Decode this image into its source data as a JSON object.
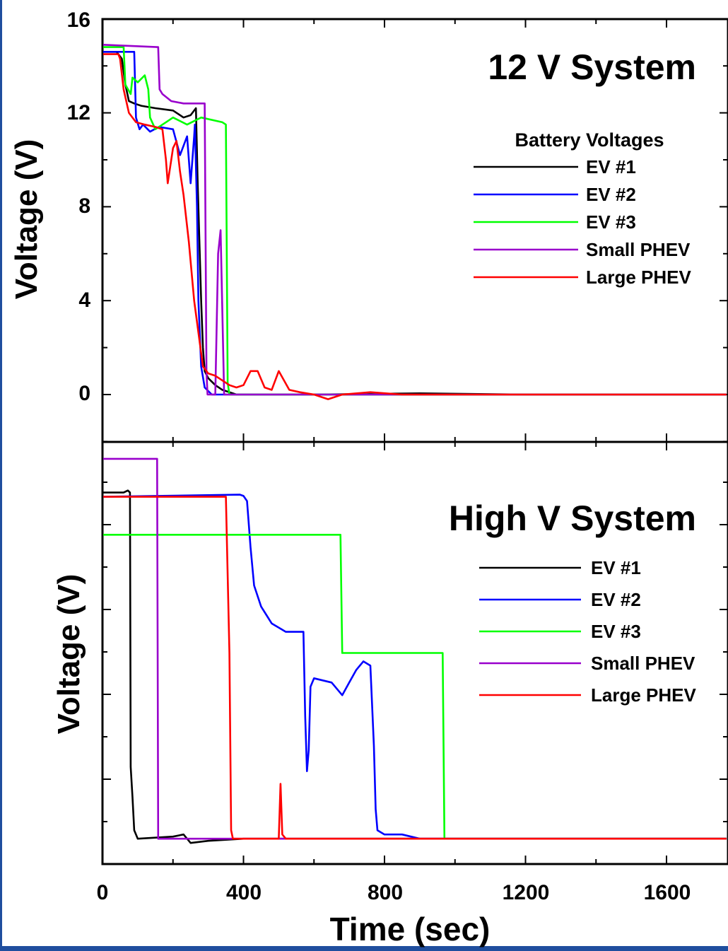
{
  "chart_data": [
    {
      "type": "line",
      "panel": "top",
      "title": "12 V System",
      "ylabel": "Voltage (V)",
      "xlim": [
        0,
        1770
      ],
      "ylim": [
        -2,
        16
      ],
      "yticks": [
        "0",
        "4",
        "8",
        "12",
        "16"
      ],
      "grid": false,
      "legend_title": "Battery Voltages",
      "legend_position": "right",
      "series": [
        {
          "name": "EV #1",
          "color": "#000000",
          "x": [
            0,
            40,
            55,
            65,
            75,
            90,
            110,
            150,
            200,
            230,
            250,
            265,
            270,
            280,
            285,
            290,
            300,
            320,
            340,
            360,
            380,
            400,
            600,
            900,
            1200,
            1500,
            1770
          ],
          "y": [
            14.6,
            14.6,
            14.3,
            13.2,
            12.5,
            12.4,
            12.3,
            12.2,
            12.1,
            11.8,
            11.9,
            12.2,
            9.0,
            4.0,
            2.0,
            1.0,
            0.7,
            0.4,
            0.2,
            0.1,
            0.0,
            0.0,
            0.0,
            0.05,
            0.0,
            0.0,
            0.0
          ]
        },
        {
          "name": "EV #2",
          "color": "#0000ff",
          "x": [
            0,
            90,
            95,
            105,
            115,
            135,
            160,
            200,
            220,
            240,
            250,
            260,
            262,
            268,
            272,
            280,
            290,
            310,
            330,
            360,
            1770
          ],
          "y": [
            14.6,
            14.6,
            11.8,
            11.3,
            11.5,
            11.2,
            11.4,
            11.3,
            10.2,
            11.0,
            9.0,
            11.0,
            11.5,
            8.0,
            4.0,
            1.2,
            0.3,
            0.0,
            0.0,
            0.0,
            0.0
          ]
        },
        {
          "name": "EV #3",
          "color": "#00ff00",
          "x": [
            0,
            60,
            65,
            80,
            85,
            100,
            120,
            130,
            135,
            150,
            180,
            200,
            240,
            280,
            340,
            350,
            355,
            360,
            380,
            1770
          ],
          "y": [
            14.8,
            14.8,
            13.2,
            12.8,
            13.5,
            13.3,
            13.6,
            13.0,
            11.8,
            11.3,
            11.6,
            11.8,
            11.5,
            11.8,
            11.6,
            11.5,
            0.5,
            0.0,
            0.0,
            0.0
          ]
        },
        {
          "name": "Small PHEV",
          "color": "#9900cc",
          "x": [
            0,
            155,
            158,
            162,
            170,
            195,
            230,
            265,
            290,
            295,
            298,
            300,
            305,
            310,
            320,
            328,
            335,
            345,
            400,
            1770
          ],
          "y": [
            14.9,
            14.8,
            14.8,
            13.0,
            12.8,
            12.5,
            12.4,
            12.4,
            12.4,
            1.0,
            0.0,
            0.0,
            0.0,
            0.0,
            0.0,
            6.0,
            7.0,
            0.0,
            0.0,
            0.0
          ]
        },
        {
          "name": "Large PHEV",
          "color": "#ff0000",
          "x": [
            0,
            30,
            45,
            50,
            60,
            75,
            95,
            120,
            150,
            170,
            180,
            185,
            200,
            210,
            220,
            230,
            245,
            260,
            285,
            300,
            320,
            340,
            360,
            380,
            400,
            420,
            440,
            460,
            480,
            500,
            530,
            560,
            600,
            640,
            680,
            760,
            850,
            1000,
            1400,
            1770
          ],
          "y": [
            14.5,
            14.5,
            14.5,
            14.3,
            13.0,
            12.0,
            11.6,
            11.5,
            11.4,
            11.3,
            10.0,
            9.0,
            10.5,
            10.8,
            9.5,
            8.5,
            6.5,
            4.0,
            1.2,
            0.9,
            0.8,
            0.6,
            0.4,
            0.3,
            0.4,
            1.0,
            1.0,
            0.3,
            0.2,
            1.0,
            0.2,
            0.1,
            0.0,
            -0.2,
            0.0,
            0.1,
            0.0,
            0.0,
            0.0,
            0.0
          ]
        }
      ]
    },
    {
      "type": "line",
      "panel": "bottom",
      "title": "High V System",
      "xlabel": "Time (sec)",
      "ylabel": "Voltage (V)",
      "xlim": [
        0,
        1770
      ],
      "ylim": [
        0,
        1
      ],
      "xticks": [
        "0",
        "400",
        "800",
        "1200",
        "1600"
      ],
      "yticks": [],
      "grid": false,
      "legend_position": "right",
      "note": "High-voltage y values are relative (axis has no printed values)",
      "series": [
        {
          "name": "EV #1",
          "color": "#000000",
          "x": [
            0,
            60,
            72,
            78,
            80,
            85,
            90,
            100,
            200,
            230,
            250,
            300,
            400,
            600,
            1000,
            1770
          ],
          "y": [
            0.88,
            0.88,
            0.885,
            0.88,
            0.23,
            0.16,
            0.08,
            0.06,
            0.065,
            0.07,
            0.05,
            0.055,
            0.06,
            0.06,
            0.06,
            0.06
          ]
        },
        {
          "name": "EV #2",
          "color": "#0000ff",
          "x": [
            0,
            390,
            400,
            410,
            420,
            430,
            450,
            480,
            520,
            570,
            575,
            580,
            585,
            590,
            600,
            650,
            680,
            700,
            720,
            740,
            760,
            770,
            775,
            780,
            800,
            850,
            900,
            1000,
            1770
          ],
          "y": [
            0.87,
            0.875,
            0.872,
            0.86,
            0.75,
            0.66,
            0.61,
            0.57,
            0.55,
            0.55,
            0.35,
            0.22,
            0.27,
            0.42,
            0.44,
            0.43,
            0.4,
            0.43,
            0.46,
            0.48,
            0.47,
            0.28,
            0.13,
            0.08,
            0.07,
            0.07,
            0.06,
            0.06,
            0.06
          ]
        },
        {
          "name": "EV #3",
          "color": "#00ff00",
          "x": [
            0,
            675,
            680,
            965,
            970,
            1770
          ],
          "y": [
            0.78,
            0.78,
            0.5,
            0.5,
            0.06,
            0.06
          ]
        },
        {
          "name": "Small PHEV",
          "color": "#9900cc",
          "x": [
            0,
            155,
            158,
            400,
            1770
          ],
          "y": [
            0.96,
            0.96,
            0.06,
            0.06,
            0.06
          ]
        },
        {
          "name": "Large PHEV",
          "color": "#ff0000",
          "x": [
            0,
            350,
            360,
            365,
            370,
            500,
            505,
            510,
            520,
            1000,
            1750,
            1770
          ],
          "y": [
            0.87,
            0.87,
            0.5,
            0.08,
            0.06,
            0.06,
            0.19,
            0.07,
            0.06,
            0.06,
            0.06,
            0.06
          ]
        }
      ]
    }
  ]
}
